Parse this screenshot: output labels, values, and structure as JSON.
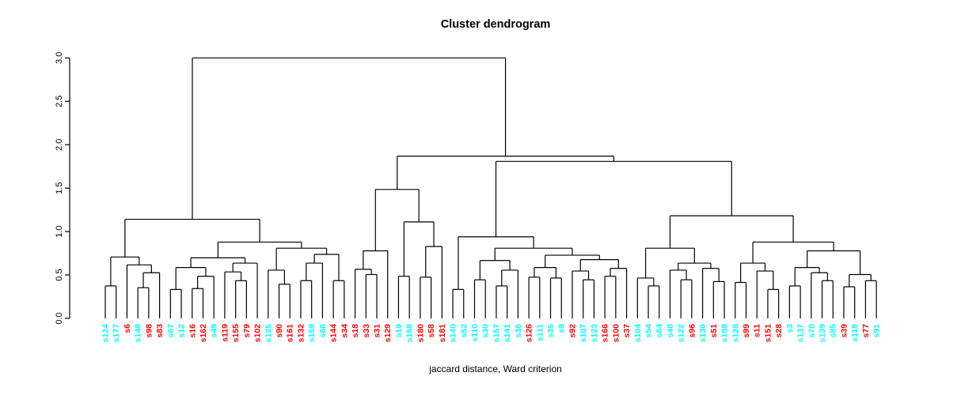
{
  "title": "Cluster dendrogram",
  "xlabel": "jaccard distance, Ward criterion",
  "chart_data": {
    "type": "dendrogram",
    "title": "Cluster dendrogram",
    "xlabel": "jaccard distance, Ward criterion",
    "ylabel": "",
    "ylim": [
      0,
      3
    ],
    "yticks": [
      0,
      0.5,
      1,
      1.5,
      2,
      2.5,
      3
    ],
    "ytick_labels": [
      "0.0",
      "0.5",
      "1.0",
      "1.5",
      "2.0",
      "2.5",
      "3.0"
    ],
    "grid": false,
    "legend": false,
    "line_color": "#000000",
    "colors": {
      "red": "#FF0000",
      "cyan": "#00FFFF"
    },
    "leaves": [
      {
        "label": "s124",
        "color": "cyan"
      },
      {
        "label": "s177",
        "color": "cyan"
      },
      {
        "label": "s6",
        "color": "red"
      },
      {
        "label": "s148",
        "color": "cyan"
      },
      {
        "label": "s98",
        "color": "red"
      },
      {
        "label": "s83",
        "color": "red"
      },
      {
        "label": "s67",
        "color": "cyan"
      },
      {
        "label": "s12",
        "color": "cyan"
      },
      {
        "label": "s16",
        "color": "red"
      },
      {
        "label": "s162",
        "color": "red"
      },
      {
        "label": "s49",
        "color": "cyan"
      },
      {
        "label": "s119",
        "color": "red"
      },
      {
        "label": "s155",
        "color": "red"
      },
      {
        "label": "s79",
        "color": "red"
      },
      {
        "label": "s102",
        "color": "red"
      },
      {
        "label": "s125",
        "color": "cyan"
      },
      {
        "label": "s90",
        "color": "red"
      },
      {
        "label": "s161",
        "color": "red"
      },
      {
        "label": "s132",
        "color": "red"
      },
      {
        "label": "s159",
        "color": "cyan"
      },
      {
        "label": "s66",
        "color": "cyan"
      },
      {
        "label": "s144",
        "color": "red"
      },
      {
        "label": "s34",
        "color": "red"
      },
      {
        "label": "s18",
        "color": "red"
      },
      {
        "label": "s33",
        "color": "red"
      },
      {
        "label": "s31",
        "color": "red"
      },
      {
        "label": "s129",
        "color": "red"
      },
      {
        "label": "s19",
        "color": "cyan"
      },
      {
        "label": "s158",
        "color": "cyan"
      },
      {
        "label": "s180",
        "color": "red"
      },
      {
        "label": "s58",
        "color": "red"
      },
      {
        "label": "s181",
        "color": "red"
      },
      {
        "label": "s140",
        "color": "cyan"
      },
      {
        "label": "s52",
        "color": "cyan"
      },
      {
        "label": "s110",
        "color": "cyan"
      },
      {
        "label": "s30",
        "color": "cyan"
      },
      {
        "label": "s157",
        "color": "cyan"
      },
      {
        "label": "s141",
        "color": "cyan"
      },
      {
        "label": "s36",
        "color": "cyan"
      },
      {
        "label": "s126",
        "color": "red"
      },
      {
        "label": "s111",
        "color": "cyan"
      },
      {
        "label": "s35",
        "color": "cyan"
      },
      {
        "label": "s9",
        "color": "cyan"
      },
      {
        "label": "s92",
        "color": "red"
      },
      {
        "label": "s107",
        "color": "cyan"
      },
      {
        "label": "s123",
        "color": "cyan"
      },
      {
        "label": "s166",
        "color": "red"
      },
      {
        "label": "s100",
        "color": "red"
      },
      {
        "label": "s37",
        "color": "red"
      },
      {
        "label": "s104",
        "color": "cyan"
      },
      {
        "label": "s54",
        "color": "cyan"
      },
      {
        "label": "s64",
        "color": "cyan"
      },
      {
        "label": "s40",
        "color": "cyan"
      },
      {
        "label": "s122",
        "color": "cyan"
      },
      {
        "label": "s96",
        "color": "red"
      },
      {
        "label": "s130",
        "color": "cyan"
      },
      {
        "label": "s51",
        "color": "red"
      },
      {
        "label": "s188",
        "color": "cyan"
      },
      {
        "label": "s128",
        "color": "cyan"
      },
      {
        "label": "s99",
        "color": "red"
      },
      {
        "label": "s11",
        "color": "red"
      },
      {
        "label": "s151",
        "color": "red"
      },
      {
        "label": "s28",
        "color": "red"
      },
      {
        "label": "s3",
        "color": "cyan"
      },
      {
        "label": "s137",
        "color": "cyan"
      },
      {
        "label": "s70",
        "color": "cyan"
      },
      {
        "label": "s139",
        "color": "cyan"
      },
      {
        "label": "s85",
        "color": "cyan"
      },
      {
        "label": "s39",
        "color": "red"
      },
      {
        "label": "s118",
        "color": "cyan"
      },
      {
        "label": "s77",
        "color": "red"
      },
      {
        "label": "s91",
        "color": "cyan"
      }
    ],
    "tree": {
      "h": 2.97,
      "c": [
        {
          "h": 1.13,
          "c": [
            {
              "h": 0.7,
              "c": [
                {
                  "h": 0.37,
                  "c": [
                    0,
                    1
                  ]
                },
                {
                  "h": 0.61,
                  "c": [
                    2,
                    {
                      "h": 0.52,
                      "c": [
                        {
                          "h": 0.35,
                          "c": [
                            3,
                            4
                          ]
                        },
                        5
                      ]
                    }
                  ]
                }
              ]
            },
            {
              "h": 0.87,
              "c": [
                {
                  "h": 0.69,
                  "c": [
                    {
                      "h": 0.58,
                      "c": [
                        {
                          "h": 0.33,
                          "c": [
                            6,
                            7
                          ]
                        },
                        {
                          "h": 0.48,
                          "c": [
                            {
                              "h": 0.34,
                              "c": [
                                8,
                                9
                              ]
                            },
                            10
                          ]
                        }
                      ]
                    },
                    {
                      "h": 0.63,
                      "c": [
                        {
                          "h": 0.53,
                          "c": [
                            11,
                            {
                              "h": 0.43,
                              "c": [
                                12,
                                13
                              ]
                            }
                          ]
                        },
                        14
                      ]
                    }
                  ]
                },
                {
                  "h": 0.8,
                  "c": [
                    {
                      "h": 0.55,
                      "c": [
                        15,
                        {
                          "h": 0.39,
                          "c": [
                            16,
                            17
                          ]
                        }
                      ]
                    },
                    {
                      "h": 0.73,
                      "c": [
                        {
                          "h": 0.63,
                          "c": [
                            {
                              "h": 0.43,
                              "c": [
                                18,
                                19
                              ]
                            },
                            20
                          ]
                        },
                        {
                          "h": 0.43,
                          "c": [
                            21,
                            22
                          ]
                        }
                      ]
                    }
                  ]
                }
              ]
            }
          ]
        },
        {
          "h": 1.85,
          "c": [
            {
              "h": 1.47,
              "c": [
                {
                  "h": 0.77,
                  "c": [
                    {
                      "h": 0.56,
                      "c": [
                        23,
                        {
                          "h": 0.5,
                          "c": [
                            24,
                            25
                          ]
                        }
                      ]
                    },
                    26
                  ]
                },
                {
                  "h": 1.1,
                  "c": [
                    {
                      "h": 0.48,
                      "c": [
                        27,
                        28
                      ]
                    },
                    {
                      "h": 0.82,
                      "c": [
                        {
                          "h": 0.47,
                          "c": [
                            29,
                            30
                          ]
                        },
                        31
                      ]
                    }
                  ]
                }
              ]
            },
            {
              "h": 1.79,
              "c": [
                {
                  "h": 0.93,
                  "c": [
                    {
                      "h": 0.33,
                      "c": [
                        32,
                        33
                      ]
                    },
                    {
                      "h": 0.8,
                      "c": [
                        {
                          "h": 0.66,
                          "c": [
                            {
                              "h": 0.44,
                              "c": [
                                34,
                                35
                              ]
                            },
                            {
                              "h": 0.55,
                              "c": [
                                {
                                  "h": 0.37,
                                  "c": [
                                    36,
                                    37
                                  ]
                                },
                                38
                              ]
                            }
                          ]
                        },
                        {
                          "h": 0.72,
                          "c": [
                            {
                              "h": 0.58,
                              "c": [
                                {
                                  "h": 0.47,
                                  "c": [
                                    39,
                                    40
                                  ]
                                },
                                {
                                  "h": 0.46,
                                  "c": [
                                    41,
                                    42
                                  ]
                                }
                              ]
                            },
                            {
                              "h": 0.67,
                              "c": [
                                {
                                  "h": 0.54,
                                  "c": [
                                    43,
                                    {
                                      "h": 0.44,
                                      "c": [
                                        44,
                                        45
                                      ]
                                    }
                                  ]
                                },
                                {
                                  "h": 0.57,
                                  "c": [
                                    {
                                      "h": 0.48,
                                      "c": [
                                        46,
                                        47
                                      ]
                                    },
                                    48
                                  ]
                                }
                              ]
                            }
                          ]
                        }
                      ]
                    }
                  ]
                },
                {
                  "h": 1.17,
                  "c": [
                    {
                      "h": 0.8,
                      "c": [
                        {
                          "h": 0.46,
                          "c": [
                            49,
                            {
                              "h": 0.37,
                              "c": [
                                50,
                                51
                              ]
                            }
                          ]
                        },
                        {
                          "h": 0.63,
                          "c": [
                            {
                              "h": 0.55,
                              "c": [
                                52,
                                {
                                  "h": 0.44,
                                  "c": [
                                    53,
                                    54
                                  ]
                                }
                              ]
                            },
                            {
                              "h": 0.57,
                              "c": [
                                55,
                                {
                                  "h": 0.42,
                                  "c": [
                                    56,
                                    57
                                  ]
                                }
                              ]
                            }
                          ]
                        }
                      ]
                    },
                    {
                      "h": 0.87,
                      "c": [
                        {
                          "h": 0.63,
                          "c": [
                            {
                              "h": 0.41,
                              "c": [
                                58,
                                59
                              ]
                            },
                            {
                              "h": 0.54,
                              "c": [
                                60,
                                {
                                  "h": 0.33,
                                  "c": [
                                    61,
                                    62
                                  ]
                                }
                              ]
                            }
                          ]
                        },
                        {
                          "h": 0.77,
                          "c": [
                            {
                              "h": 0.58,
                              "c": [
                                {
                                  "h": 0.37,
                                  "c": [
                                    63,
                                    64
                                  ]
                                },
                                {
                                  "h": 0.52,
                                  "c": [
                                    65,
                                    {
                                      "h": 0.43,
                                      "c": [
                                        66,
                                        67
                                      ]
                                    }
                                  ]
                                }
                              ]
                            },
                            {
                              "h": 0.5,
                              "c": [
                                {
                                  "h": 0.36,
                                  "c": [
                                    68,
                                    69
                                  ]
                                },
                                {
                                  "h": 0.43,
                                  "c": [
                                    70,
                                    71
                                  ]
                                }
                              ]
                            }
                          ]
                        }
                      ]
                    }
                  ]
                }
              ]
            }
          ]
        }
      ]
    }
  }
}
